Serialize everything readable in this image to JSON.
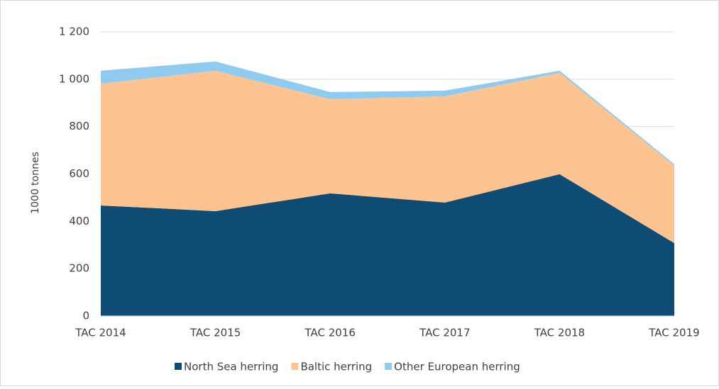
{
  "chart_data": {
    "type": "stacked_area",
    "y_axis_label": "1000 tonnes",
    "categories": [
      "TAC 2014",
      "TAC 2015",
      "TAC 2016",
      "TAC 2017",
      "TAC 2018",
      "TAC 2019"
    ],
    "series": [
      {
        "name": "North Sea herring",
        "color": "#0e4c75",
        "values": [
          467,
          443,
          518,
          479,
          599,
          308
        ]
      },
      {
        "name": "Baltic herring",
        "color": "#fdc390",
        "values": [
          515,
          593,
          398,
          449,
          428,
          327
        ]
      },
      {
        "name": "Other European herring",
        "color": "#8fcbee",
        "values": [
          54,
          39,
          30,
          24,
          9,
          6
        ]
      }
    ],
    "ylim": [
      0,
      1200
    ],
    "yticks": [
      0,
      200,
      400,
      600,
      800,
      {
        "value": 1000,
        "label": "1 000"
      },
      {
        "value": 1200,
        "label": "1 200"
      }
    ],
    "grid": true,
    "legend": "bottom"
  }
}
